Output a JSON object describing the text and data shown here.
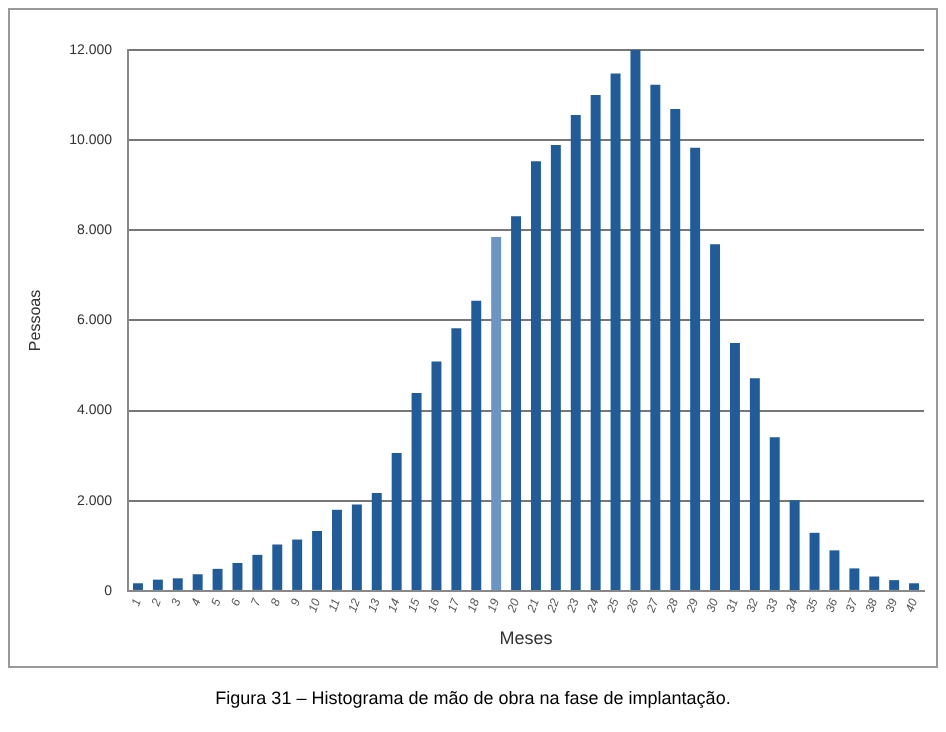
{
  "chart_data": {
    "type": "bar",
    "xlabel": "Meses",
    "ylabel": "Pessoas",
    "categories": [
      "1",
      "2",
      "3",
      "4",
      "5",
      "6",
      "7",
      "8",
      "9",
      "10",
      "11",
      "12",
      "13",
      "14",
      "15",
      "16",
      "17",
      "18",
      "19",
      "20",
      "21",
      "22",
      "23",
      "24",
      "25",
      "26",
      "27",
      "28",
      "29",
      "30",
      "31",
      "32",
      "33",
      "34",
      "35",
      "36",
      "37",
      "38",
      "39",
      "40"
    ],
    "values": [
      170,
      250,
      280,
      370,
      490,
      620,
      800,
      1030,
      1140,
      1330,
      1800,
      1920,
      2170,
      3060,
      4390,
      5090,
      5830,
      6440,
      7850,
      8310,
      9530,
      9890,
      10560,
      11000,
      11480,
      12000,
      11230,
      10690,
      9830,
      7690,
      5500,
      4720,
      3410,
      2010,
      1290,
      900,
      500,
      320,
      240,
      170
    ],
    "colors": [
      "#1f5c99",
      "#1f5c99",
      "#1f5c99",
      "#1f5c99",
      "#1f5c99",
      "#1f5c99",
      "#1f5c99",
      "#1f5c99",
      "#1f5c99",
      "#1f5c99",
      "#1f5c99",
      "#1f5c99",
      "#1f5c99",
      "#1f5c99",
      "#1f5c99",
      "#1f5c99",
      "#1f5c99",
      "#1f5c99",
      "#6a96c6",
      "#1f5c99",
      "#1f5c99",
      "#1f5c99",
      "#1f5c99",
      "#1f5c99",
      "#1f5c99",
      "#1f5c99",
      "#1f5c99",
      "#1f5c99",
      "#1f5c99",
      "#1f5c99",
      "#1f5c99",
      "#1f5c99",
      "#1f5c99",
      "#1f5c99",
      "#1f5c99",
      "#1f5c99",
      "#1f5c99",
      "#1f5c99",
      "#1f5c99",
      "#1f5c99"
    ],
    "ylim": [
      0,
      12000
    ],
    "yticks": [
      {
        "value": 0,
        "label": "0"
      },
      {
        "value": 2000,
        "label": "2.000"
      },
      {
        "value": 4000,
        "label": "4.000"
      },
      {
        "value": 6000,
        "label": "6.000"
      },
      {
        "value": 8000,
        "label": "8.000"
      },
      {
        "value": 10000,
        "label": "10.000"
      },
      {
        "value": 12000,
        "label": "12.000"
      }
    ],
    "grid": "y",
    "legend": false,
    "annotations": [
      "Figura 31 – Histograma de mão de obra na fase de implantação."
    ]
  }
}
